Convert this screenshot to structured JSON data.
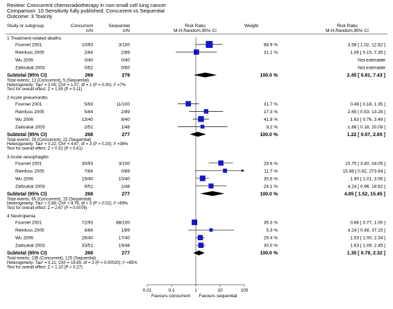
{
  "header": {
    "review": "Review:  Concurrent chemoradiotherapy in non-small cell lung cancer",
    "comparison": "Comparison:  10 Sensitivity fully published: Concurrent vs Sequential",
    "outcome": "Outcome:  3 Toxicity"
  },
  "columns": {
    "study": "Study or subgroup",
    "g1": "Concurrent",
    "g1_sub": "n/N",
    "g2": "Sequential",
    "g2_sub": "n/N",
    "rr": "Risk Ratio",
    "rr_sub": "M-H,Random,95% CI",
    "weight": "Weight",
    "rr2": "Risk Ratio",
    "rr2_sub": "M-H,Random,95% CI"
  },
  "chart_data": {
    "type": "forest",
    "x_scale": "log",
    "xlim": [
      0.01,
      100
    ],
    "ticks": [
      "0.01",
      "0.1",
      "1",
      "10",
      "100"
    ],
    "tick_values": [
      0.01,
      0.1,
      1,
      10,
      100
    ],
    "left_label": "Favours concurrent",
    "right_label": "Favours sequential",
    "subgroups": [
      {
        "title": "1 Treatment-related deaths",
        "studies": [
          {
            "name": "Fournel 2001",
            "e1": "10/93",
            "e2": "3/100",
            "weight": "68.9 %",
            "ci_text": "3.58 [ 1.02, 12.62 ]",
            "rr": 3.58,
            "lo": 1.02,
            "hi": 12.62
          },
          {
            "name": "Reinfuss 2005",
            "e1": "2/84",
            "e2": "2/89",
            "weight": "31.1 %",
            "ci_text": "1.06 [ 0.15, 7.35 ]",
            "rr": 1.06,
            "lo": 0.15,
            "hi": 7.35
          },
          {
            "name": "Wu 2006",
            "e1": "0/40",
            "e2": "0/40",
            "weight": "",
            "ci_text": "Not estimable",
            "rr": null,
            "lo": null,
            "hi": null
          },
          {
            "name": "Zatloukal 2003",
            "e1": "0/52",
            "e2": "0/50",
            "weight": "",
            "ci_text": "Not estimable",
            "rr": null,
            "lo": null,
            "hi": null
          }
        ],
        "subtotal": {
          "label": "Subtotal (95% CI)",
          "n1": "269",
          "n2": "279",
          "weight": "100.0 %",
          "ci_text": "2.45 [ 0.81, 7.43 ]",
          "rr": 2.45,
          "lo": 0.81,
          "hi": 7.43
        },
        "notes": [
          "Total events: 12 (Concurrent), 5 (Sequential)",
          "Heterogeneity: Tau² = 0.05; Chi² = 1.07, df = 1 (P = 0.30); I² =7%",
          "Test for overall effect: Z = 1.59 (P = 0.11)"
        ]
      },
      {
        "title": "2 Acute pneumonitis",
        "studies": [
          {
            "name": "Fournel 2001",
            "e1": "5/93",
            "e2": "11/100",
            "weight": "31.7 %",
            "ci_text": "0.49 [ 0.18, 1.35 ]",
            "rr": 0.49,
            "lo": 0.18,
            "hi": 1.35
          },
          {
            "name": "Reinfuss 2005",
            "e1": "5/84",
            "e2": "2/89",
            "weight": "17.3 %",
            "ci_text": "2.65 [ 0.53, 13.28 ]",
            "rr": 2.65,
            "lo": 0.53,
            "hi": 13.28
          },
          {
            "name": "Wu 2006",
            "e1": "13/40",
            "e2": "8/40",
            "weight": "41.8 %",
            "ci_text": "1.63 [ 0.76, 3.49 ]",
            "rr": 1.63,
            "lo": 0.76,
            "hi": 3.49
          },
          {
            "name": "Zatloukal 2003",
            "e1": "2/51",
            "e2": "1/48",
            "weight": "9.2 %",
            "ci_text": "1.88 [ 0.18, 20.09 ]",
            "rr": 1.88,
            "lo": 0.18,
            "hi": 20.09
          }
        ],
        "subtotal": {
          "label": "Subtotal (95% CI)",
          "n1": "268",
          "n2": "277",
          "weight": "100.0 %",
          "ci_text": "1.22 [ 0.57, 2.65 ]",
          "rr": 1.22,
          "lo": 0.57,
          "hi": 2.65
        },
        "notes": [
          "Total events: 25 (Concurrent), 22 (Sequential)",
          "Heterogeneity: Tau² = 0.22; Chi² = 4.67, df = 3 (P = 0.20); I² =36%",
          "Test for overall effect: Z = 0.52 (P = 0.61)"
        ]
      },
      {
        "title": "3 Acute oesophagitis",
        "studies": [
          {
            "name": "Fournel 2001",
            "e1": "30/93",
            "e2": "3/100",
            "weight": "28.6 %",
            "ci_text": "10.75 [ 3.40, 34.05 ]",
            "rr": 10.75,
            "lo": 3.4,
            "hi": 34.05
          },
          {
            "name": "Reinfuss 2005",
            "e1": "7/84",
            "e2": "0/89",
            "weight": "11.7 %",
            "ci_text": "15.88 [ 0.92, 273.84 ]",
            "rr": 15.88,
            "lo": 0.92,
            "hi": 273.84
          },
          {
            "name": "Wu 2006",
            "e1": "19/40",
            "e2": "10/40",
            "weight": "35.6 %",
            "ci_text": "1.90 [ 1.01, 3.56 ]",
            "rr": 1.9,
            "lo": 1.01,
            "hi": 3.56
          },
          {
            "name": "Zatloukal 2003",
            "e1": "9/51",
            "e2": "2/48",
            "weight": "24.1 %",
            "ci_text": "4.24 [ 0.96, 18.62 ]",
            "rr": 4.24,
            "lo": 0.96,
            "hi": 18.62
          }
        ],
        "subtotal": {
          "label": "Subtotal (95% CI)",
          "n1": "268",
          "n2": "277",
          "weight": "100.0 %",
          "ci_text": "4.85 [ 1.52, 15.45 ]",
          "rr": 4.85,
          "lo": 1.52,
          "hi": 15.45
        },
        "notes": [
          "Total events: 65 (Concurrent), 15 (Sequential)",
          "Heterogeneity: Tau² = 0.88; Chi² = 9.76, df = 3 (P = 0.02); I² =69%",
          "Test for overall effect: Z = 2.67 (P = 0.0076)"
        ]
      },
      {
        "title": "4 Neutropenia",
        "studies": [
          {
            "name": "Fournel 2001",
            "e1": "72/93",
            "e2": "88/100",
            "weight": "35.3 %",
            "ci_text": "0.88 [ 0.77, 1.00 ]",
            "rr": 0.88,
            "lo": 0.77,
            "hi": 1.0
          },
          {
            "name": "Reinfuss 2005",
            "e1": "4/84",
            "e2": "1/89",
            "weight": "5.3 %",
            "ci_text": "4.24 [ 0.48, 37.15 ]",
            "rr": 4.24,
            "lo": 0.48,
            "hi": 37.15
          },
          {
            "name": "Wu 2006",
            "e1": "26/40",
            "e2": "17/40",
            "weight": "29.4 %",
            "ci_text": "1.53 [ 1.00, 2.34 ]",
            "rr": 1.53,
            "lo": 1.0,
            "hi": 2.34
          },
          {
            "name": "Zatloukal 2003",
            "e1": "33/51",
            "e2": "19/48",
            "weight": "30.0 %",
            "ci_text": "1.63 [ 1.09, 2.45 ]",
            "rr": 1.63,
            "lo": 1.09,
            "hi": 2.45
          }
        ],
        "subtotal": {
          "label": "Subtotal (95% CI)",
          "n1": "268",
          "n2": "277",
          "weight": "100.0 %",
          "ci_text": "1.35 [ 0.79, 2.32 ]",
          "rr": 1.35,
          "lo": 0.79,
          "hi": 2.32
        },
        "notes": [
          "Total events: 135 (Concurrent), 125 (Sequential)",
          "Heterogeneity: Tau² = 0.21; Chi² = 19.65, df = 3 (P = 0.00020); I² =85%",
          "Test for overall effect: Z = 1.10 (P = 0.27)"
        ]
      }
    ]
  }
}
